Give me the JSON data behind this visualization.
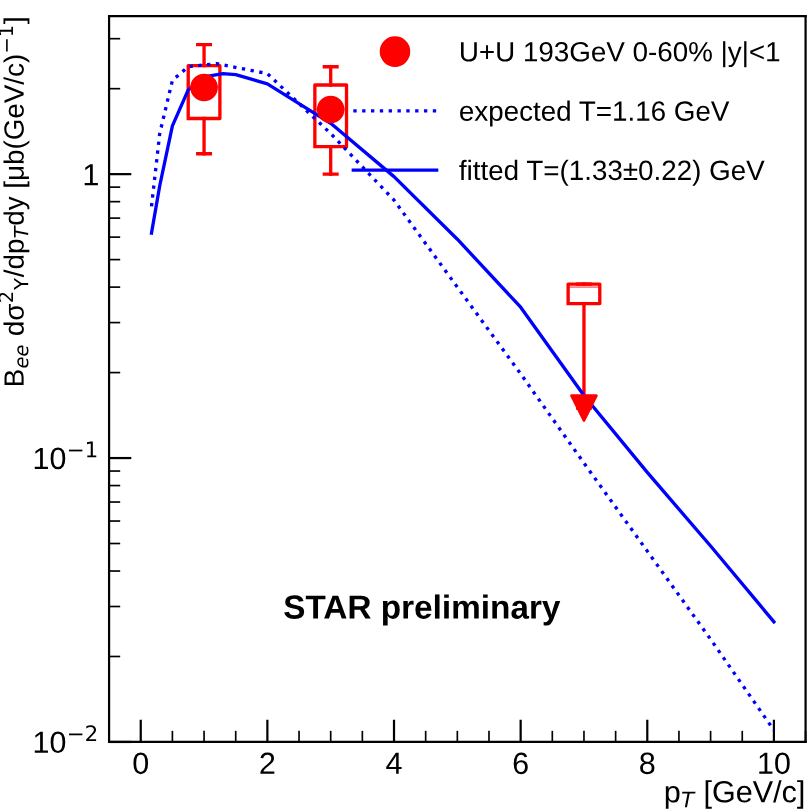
{
  "chart_data": {
    "type": "line",
    "xlabel": "p$_{T}$ [GeV/c]",
    "ylabel": "B$_{ee}$ dσ$^{2}$$_{Υ}$/dp$_{T}$dy [μb(GeV/c)$^{−1}$]",
    "annotations": [
      "STAR preliminary"
    ],
    "log": "y",
    "grid": false,
    "legend": "top right",
    "xlim": [
      -0.5,
      10.5
    ],
    "xticks": [
      0,
      2,
      4,
      6,
      8,
      10
    ],
    "ylim": [
      0.01,
      3.6
    ],
    "yticks": [
      {
        "value": 0.01,
        "label": "10$^{−2}$"
      },
      {
        "value": 0.1,
        "label": "10$^{−1}$"
      },
      1
    ],
    "series": [
      {
        "type": "scatter",
        "name": "U+U 193GeV 0-60% |y|<1",
        "color": "#ff0000",
        "marker": "circle",
        "x": [
          1,
          3
        ],
        "values": [
          2.02,
          1.69
        ]
      },
      {
        "type": "scatter",
        "color": "#ff0000",
        "marker": "triangle",
        "x": [
          7
        ],
        "values": [
          0.15
        ]
      },
      {
        "type": "box",
        "color": "#ff0000",
        "x": [
          1,
          3,
          7
        ],
        "boxes": [
          {
            "low": 1.18,
            "q1": 1.57,
            "median": 2.02,
            "q3": 2.41,
            "high": 2.86
          },
          {
            "low": 1.0,
            "q1": 1.25,
            "median": 1.69,
            "q3": 2.06,
            "high": 2.39
          },
          {
            "low": 0.15,
            "q1": 0.35,
            "median": 0.4,
            "q3": 0.41,
            "high": 0.41
          }
        ]
      },
      {
        "name": "expected T=1.16 GeV",
        "color": "#0000ff",
        "line_style": "dotted",
        "marker": "none",
        "x": [
          0.17,
          0.3,
          0.5,
          0.75,
          1.2,
          2,
          3,
          4,
          5,
          6,
          7,
          8,
          9,
          10
        ],
        "values": [
          0.77,
          1.39,
          2.14,
          2.39,
          2.45,
          2.26,
          1.39,
          0.81,
          0.4,
          0.198,
          0.096,
          0.047,
          0.023,
          0.011
        ]
      },
      {
        "name": "fitted T=(1.33±0.22) GeV",
        "color": "#0000ff",
        "line_style": "solid",
        "marker": "none",
        "x": [
          0.17,
          0.3,
          0.5,
          0.75,
          1,
          1.3,
          1.5,
          2,
          3,
          4,
          5,
          6,
          7,
          8,
          9,
          10
        ],
        "values": [
          0.62,
          0.91,
          1.48,
          1.98,
          2.2,
          2.26,
          2.24,
          2.08,
          1.51,
          0.98,
          0.59,
          0.34,
          0.166,
          0.089,
          0.049,
          0.0265
        ]
      }
    ]
  }
}
